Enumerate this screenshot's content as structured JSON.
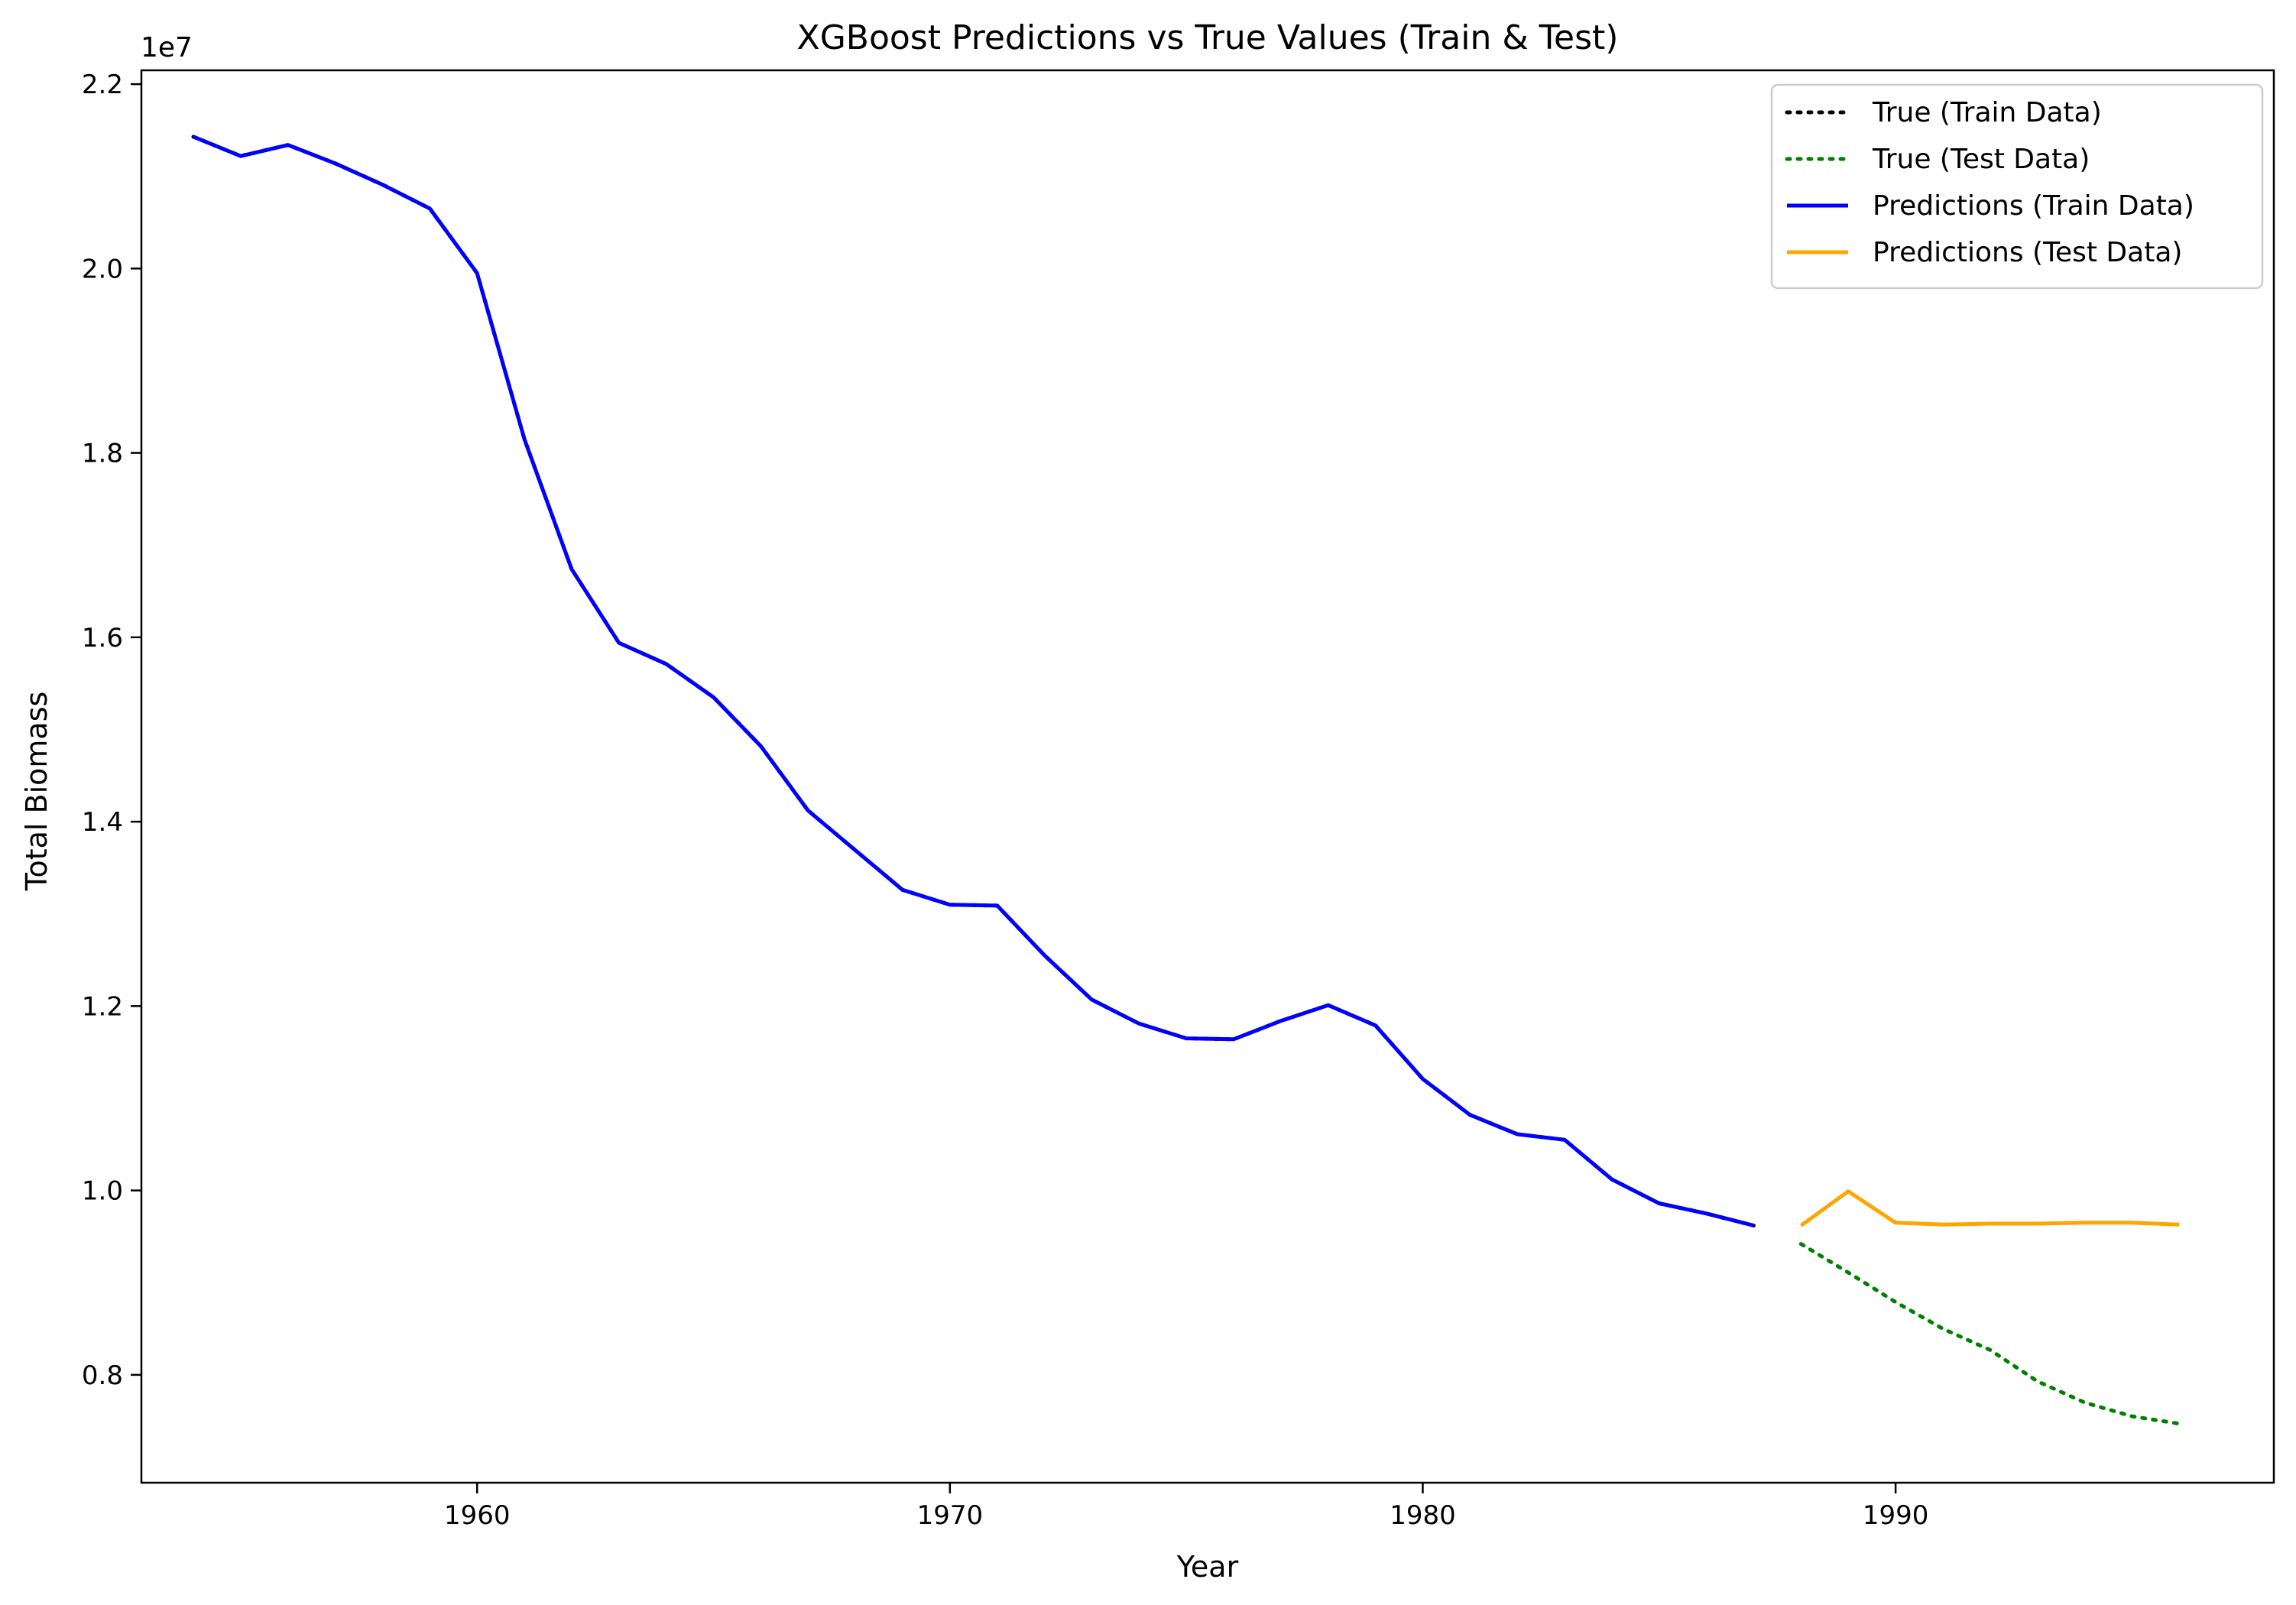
{
  "chart_data": {
    "type": "line",
    "title": "XGBoost Predictions vs True Values (Train & Test)",
    "xlabel": "Year",
    "ylabel": "Total Biomass",
    "y_offset_label": "1e7",
    "xlim": [
      1952.9,
      1998.0
    ],
    "ylim": [
      6.83,
      22.15
    ],
    "y_scale_factor": 10000000,
    "xticks": [
      1960,
      1970,
      1980,
      1990
    ],
    "yticks": [
      {
        "value": 8.0,
        "label": "0.8"
      },
      {
        "value": 10.0,
        "label": "1.0"
      },
      {
        "value": 12.0,
        "label": "1.2"
      },
      {
        "value": 14.0,
        "label": "1.4"
      },
      {
        "value": 16.0,
        "label": "1.6"
      },
      {
        "value": 18.0,
        "label": "1.8"
      },
      {
        "value": 20.0,
        "label": "2.0"
      },
      {
        "value": 22.0,
        "label": "2.2"
      }
    ],
    "grid": false,
    "legend_position": "top-right",
    "series": [
      {
        "name": "True (Train Data)",
        "color": "#000000",
        "style": "dotted",
        "x": [
          1954,
          1955,
          1956,
          1957,
          1958,
          1959,
          1960,
          1961,
          1962,
          1963,
          1964,
          1965,
          1966,
          1967,
          1968,
          1969,
          1970,
          1971,
          1972,
          1973,
          1974,
          1975,
          1976,
          1977,
          1978,
          1979,
          1980,
          1981,
          1982,
          1983,
          1984,
          1985,
          1986,
          1987
        ],
        "y": [
          21.43,
          21.22,
          21.34,
          21.14,
          20.91,
          20.65,
          19.95,
          18.15,
          16.74,
          15.94,
          15.71,
          15.35,
          14.82,
          14.12,
          13.69,
          13.26,
          13.1,
          13.09,
          12.55,
          12.07,
          11.81,
          11.65,
          11.64,
          11.84,
          12.01,
          11.79,
          11.21,
          10.82,
          10.61,
          10.55,
          10.12,
          9.86,
          9.75,
          9.62
        ]
      },
      {
        "name": "True (Test Data)",
        "color": "#008000",
        "style": "dotted",
        "x": [
          1988,
          1989,
          1990,
          1991,
          1992,
          1993,
          1994,
          1995,
          1996
        ],
        "y": [
          9.42,
          9.11,
          8.79,
          8.5,
          8.27,
          7.93,
          7.7,
          7.55,
          7.47
        ]
      },
      {
        "name": "Predictions (Train Data)",
        "color": "#0000ff",
        "style": "solid",
        "x": [
          1954,
          1955,
          1956,
          1957,
          1958,
          1959,
          1960,
          1961,
          1962,
          1963,
          1964,
          1965,
          1966,
          1967,
          1968,
          1969,
          1970,
          1971,
          1972,
          1973,
          1974,
          1975,
          1976,
          1977,
          1978,
          1979,
          1980,
          1981,
          1982,
          1983,
          1984,
          1985,
          1986,
          1987
        ],
        "y": [
          21.43,
          21.22,
          21.34,
          21.14,
          20.91,
          20.65,
          19.95,
          18.15,
          16.74,
          15.94,
          15.71,
          15.35,
          14.82,
          14.12,
          13.69,
          13.26,
          13.1,
          13.09,
          12.55,
          12.07,
          11.81,
          11.65,
          11.64,
          11.84,
          12.01,
          11.79,
          11.21,
          10.82,
          10.61,
          10.55,
          10.12,
          9.86,
          9.75,
          9.62
        ]
      },
      {
        "name": "Predictions (Test Data)",
        "color": "#ffa500",
        "style": "solid",
        "x": [
          1988,
          1989,
          1990,
          1991,
          1992,
          1993,
          1994,
          1995,
          1996
        ],
        "y": [
          9.62,
          9.99,
          9.65,
          9.63,
          9.64,
          9.64,
          9.65,
          9.65,
          9.63
        ]
      }
    ]
  }
}
